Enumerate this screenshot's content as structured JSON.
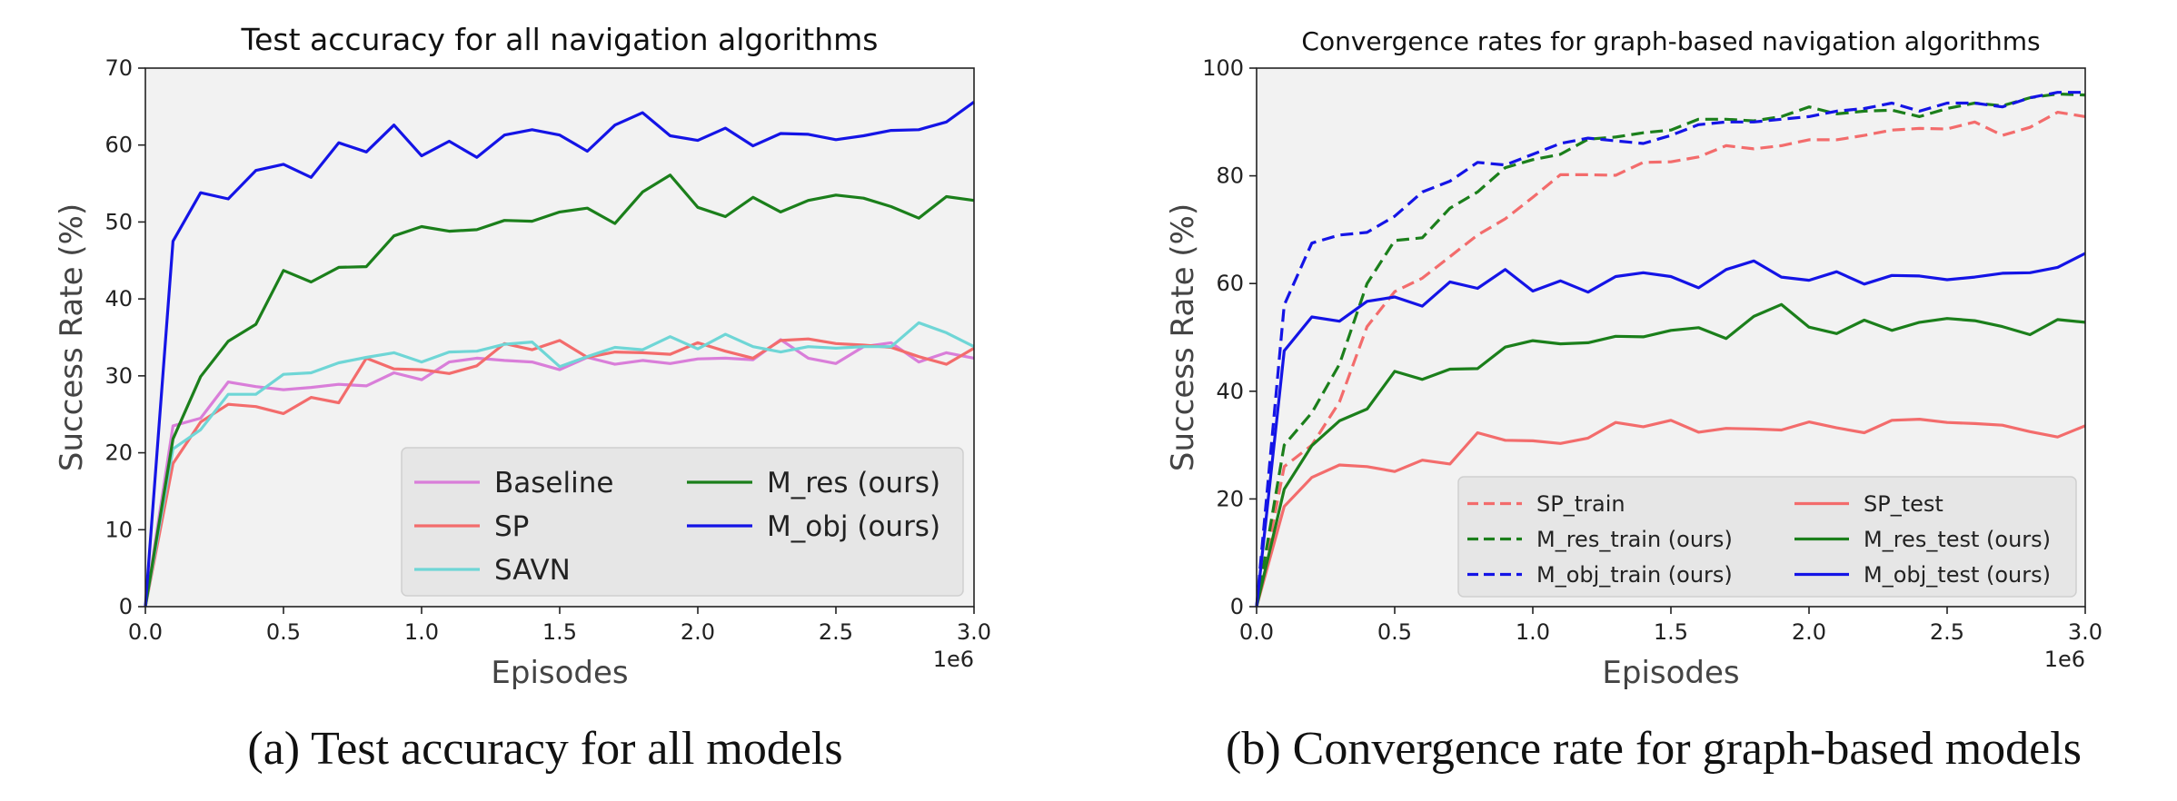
{
  "captions": {
    "a": "(a) Test accuracy for all models",
    "b": "(b) Convergence rate for graph-based models"
  },
  "chart_data": [
    {
      "type": "line",
      "title": "Test accuracy for all navigation algorithms",
      "xlabel": "Episodes",
      "ylabel": "Success Rate (%)",
      "x_scale_note": "1e6",
      "xlim": [
        0,
        3.0
      ],
      "ylim": [
        0,
        70
      ],
      "xticks": [
        0.0,
        0.5,
        1.0,
        1.5,
        2.0,
        2.5,
        3.0
      ],
      "xtick_labels": [
        "0.0",
        "0.5",
        "1.0",
        "1.5",
        "2.0",
        "2.5",
        "3.0"
      ],
      "yticks": [
        0,
        10,
        20,
        30,
        40,
        50,
        60,
        70
      ],
      "ytick_labels": [
        "0",
        "10",
        "20",
        "30",
        "40",
        "50",
        "60",
        "70"
      ],
      "grid": false,
      "legend_position": "lower-right",
      "legend_columns": 2,
      "x": [
        0,
        0.1,
        0.2,
        0.3,
        0.4,
        0.5,
        0.6,
        0.7,
        0.8,
        0.9,
        1.0,
        1.1,
        1.2,
        1.3,
        1.4,
        1.5,
        1.6,
        1.7,
        1.8,
        1.9,
        2.0,
        2.1,
        2.2,
        2.3,
        2.4,
        2.5,
        2.6,
        2.7,
        2.8,
        2.9,
        3.0
      ],
      "series": [
        {
          "name": "Baseline",
          "color": "#d97ed9",
          "dash": false,
          "values": [
            0,
            23.5,
            24.5,
            29.2,
            28.6,
            28.2,
            28.5,
            28.9,
            28.7,
            30.4,
            29.5,
            31.8,
            32.3,
            32.0,
            31.8,
            30.8,
            32.4,
            31.5,
            32.0,
            31.6,
            32.2,
            32.3,
            32.1,
            34.7,
            32.3,
            31.6,
            33.8,
            34.3,
            31.8,
            33.0,
            32.3
          ]
        },
        {
          "name": "SP",
          "color": "#f36c6c",
          "dash": false,
          "values": [
            0,
            18.6,
            24.0,
            26.3,
            26.0,
            25.1,
            27.2,
            26.5,
            32.3,
            30.9,
            30.8,
            30.3,
            31.3,
            34.2,
            33.4,
            34.6,
            32.4,
            33.1,
            33.0,
            32.8,
            34.3,
            33.2,
            32.3,
            34.6,
            34.8,
            34.2,
            34.0,
            33.7,
            32.5,
            31.5,
            33.6
          ]
        },
        {
          "name": "SAVN",
          "color": "#6fd6d6",
          "dash": false,
          "values": [
            0,
            20.5,
            23.0,
            27.6,
            27.6,
            30.2,
            30.4,
            31.7,
            32.4,
            33.0,
            31.8,
            33.1,
            33.2,
            34.1,
            34.4,
            31.2,
            32.5,
            33.7,
            33.4,
            35.1,
            33.5,
            35.4,
            33.8,
            33.1,
            33.8,
            33.6,
            33.8,
            33.8,
            36.9,
            35.6,
            33.8
          ]
        },
        {
          "name": "M_res (ours)",
          "color": "#1b7f1b",
          "dash": false,
          "values": [
            0,
            21.8,
            29.9,
            34.5,
            36.7,
            43.7,
            42.2,
            44.1,
            44.2,
            48.2,
            49.4,
            48.8,
            49.0,
            50.2,
            50.1,
            51.3,
            51.8,
            49.8,
            53.9,
            56.1,
            51.9,
            50.7,
            53.2,
            51.3,
            52.8,
            53.5,
            53.1,
            52.0,
            50.5,
            53.3,
            52.8
          ]
        },
        {
          "name": "M_obj (ours)",
          "color": "#1414e6",
          "dash": false,
          "values": [
            0,
            47.5,
            53.8,
            53.0,
            56.7,
            57.5,
            55.8,
            60.3,
            59.1,
            62.6,
            58.6,
            60.5,
            58.4,
            61.3,
            62.0,
            61.3,
            59.2,
            62.6,
            64.2,
            61.2,
            60.6,
            62.2,
            59.9,
            61.5,
            61.4,
            60.7,
            61.2,
            61.9,
            62.0,
            63.0,
            65.6
          ]
        }
      ]
    },
    {
      "type": "line",
      "title": "Convergence rates for graph-based navigation algorithms",
      "xlabel": "Episodes",
      "ylabel": "Success Rate (%)",
      "x_scale_note": "1e6",
      "xlim": [
        0,
        3.0
      ],
      "ylim": [
        0,
        100
      ],
      "xticks": [
        0.0,
        0.5,
        1.0,
        1.5,
        2.0,
        2.5,
        3.0
      ],
      "xtick_labels": [
        "0.0",
        "0.5",
        "1.0",
        "1.5",
        "2.0",
        "2.5",
        "3.0"
      ],
      "yticks": [
        0,
        20,
        40,
        60,
        80,
        100
      ],
      "ytick_labels": [
        "0",
        "20",
        "40",
        "60",
        "80",
        "100"
      ],
      "grid": false,
      "legend_position": "lower-right",
      "legend_columns": 2,
      "x": [
        0,
        0.1,
        0.2,
        0.3,
        0.4,
        0.5,
        0.6,
        0.7,
        0.8,
        0.9,
        1.0,
        1.1,
        1.2,
        1.3,
        1.4,
        1.5,
        1.6,
        1.7,
        1.8,
        1.9,
        2.0,
        2.1,
        2.2,
        2.3,
        2.4,
        2.5,
        2.6,
        2.7,
        2.8,
        2.9,
        3.0
      ],
      "series": [
        {
          "name": "SP_train",
          "color": "#f36c6c",
          "dash": true,
          "values": [
            0,
            26.0,
            30.0,
            38.0,
            52.0,
            58.5,
            61.0,
            65.0,
            69.0,
            72.0,
            76.0,
            80.2,
            80.2,
            80.1,
            82.5,
            82.6,
            83.5,
            85.6,
            85.0,
            85.6,
            86.7,
            86.7,
            87.5,
            88.5,
            88.8,
            88.7,
            90.0,
            87.5,
            89.0,
            91.8,
            91.0
          ]
        },
        {
          "name": "M_res_train (ours)",
          "color": "#1b7f1b",
          "dash": true,
          "values": [
            0,
            30.0,
            36.0,
            45.0,
            60.0,
            68.0,
            68.5,
            74.0,
            77.0,
            81.5,
            83.0,
            84.0,
            86.8,
            87.2,
            88.0,
            88.5,
            90.5,
            90.5,
            90.2,
            91.0,
            92.8,
            91.5,
            92.0,
            92.2,
            91.0,
            92.5,
            93.5,
            93.0,
            94.5,
            95.2,
            95.0
          ]
        },
        {
          "name": "M_obj_train (ours)",
          "color": "#1414e6",
          "dash": true,
          "values": [
            0,
            56.0,
            67.5,
            69.0,
            69.5,
            72.5,
            77.0,
            79.0,
            82.5,
            82.0,
            84.0,
            86.0,
            87.0,
            86.5,
            86.0,
            87.5,
            89.5,
            90.0,
            90.0,
            90.5,
            91.0,
            92.0,
            92.5,
            93.5,
            92.0,
            93.5,
            93.5,
            92.8,
            94.5,
            95.5,
            95.5
          ]
        },
        {
          "name": "SP_test",
          "color": "#f36c6c",
          "dash": false,
          "values": [
            0,
            18.6,
            24.0,
            26.3,
            26.0,
            25.1,
            27.2,
            26.5,
            32.3,
            30.9,
            30.8,
            30.3,
            31.3,
            34.2,
            33.4,
            34.6,
            32.4,
            33.1,
            33.0,
            32.8,
            34.3,
            33.2,
            32.3,
            34.6,
            34.8,
            34.2,
            34.0,
            33.7,
            32.5,
            31.5,
            33.6
          ]
        },
        {
          "name": "M_res_test (ours)",
          "color": "#1b7f1b",
          "dash": false,
          "values": [
            0,
            21.8,
            29.9,
            34.5,
            36.7,
            43.7,
            42.2,
            44.1,
            44.2,
            48.2,
            49.4,
            48.8,
            49.0,
            50.2,
            50.1,
            51.3,
            51.8,
            49.8,
            53.9,
            56.1,
            51.9,
            50.7,
            53.2,
            51.3,
            52.8,
            53.5,
            53.1,
            52.0,
            50.5,
            53.3,
            52.8
          ]
        },
        {
          "name": "M_obj_test (ours)",
          "color": "#1414e6",
          "dash": false,
          "values": [
            0,
            47.5,
            53.8,
            53.0,
            56.7,
            57.5,
            55.8,
            60.3,
            59.1,
            62.6,
            58.6,
            60.5,
            58.4,
            61.3,
            62.0,
            61.3,
            59.2,
            62.6,
            64.2,
            61.2,
            60.6,
            62.2,
            59.9,
            61.5,
            61.4,
            60.7,
            61.2,
            61.9,
            62.0,
            63.0,
            65.6
          ]
        }
      ]
    }
  ]
}
